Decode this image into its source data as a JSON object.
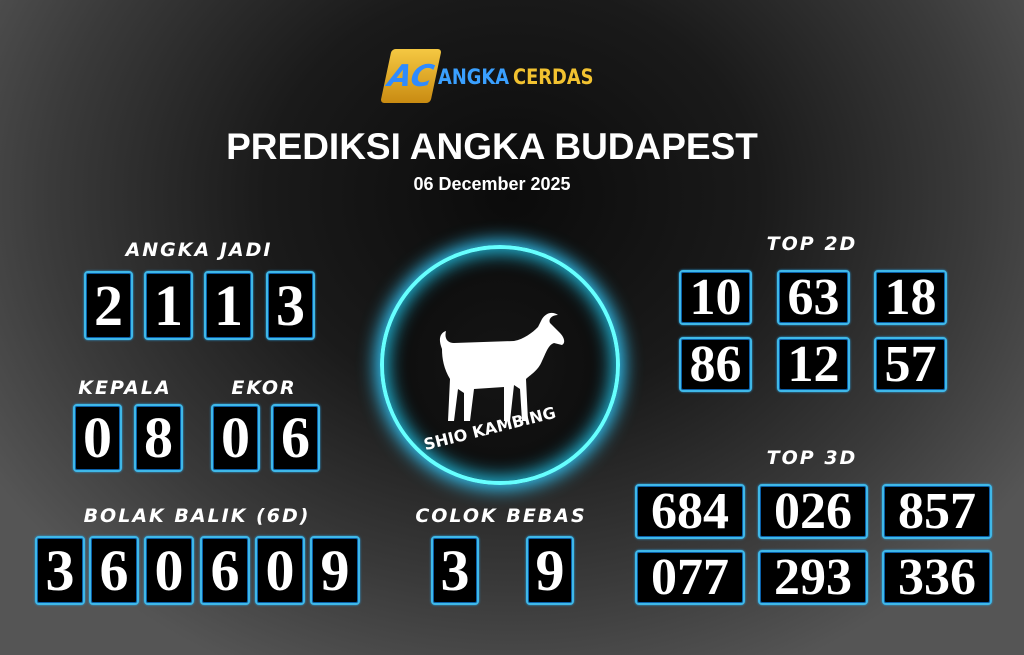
{
  "logo": {
    "text_a": "ANGKA",
    "text_b": "CERDAS",
    "letters": "AC"
  },
  "title": "PREDIKSI ANGKA BUDAPEST",
  "date": "06 December 2025",
  "angka_jadi": {
    "label": "ANGKA JADI",
    "digits": [
      "2",
      "1",
      "1",
      "3"
    ]
  },
  "kepala": {
    "label": "KEPALA",
    "digits": [
      "0",
      "8"
    ]
  },
  "ekor": {
    "label": "EKOR",
    "digits": [
      "0",
      "6"
    ]
  },
  "bolak_balik": {
    "label": "BOLAK BALIK (6D)",
    "digits": [
      "3",
      "6",
      "0",
      "6",
      "0",
      "9"
    ]
  },
  "colok_bebas": {
    "label": "COLOK BEBAS",
    "digits": [
      "3",
      "9"
    ]
  },
  "shio": {
    "label": "SHIO KAMBING",
    "icon": "goat-icon"
  },
  "top2d": {
    "label": "TOP 2D",
    "values": [
      "10",
      "63",
      "18",
      "86",
      "12",
      "57"
    ]
  },
  "top3d": {
    "label": "TOP 3D",
    "values": [
      "684",
      "026",
      "857",
      "077",
      "293",
      "336"
    ]
  },
  "colors": {
    "box_border": "#3fb8e8",
    "circle_glow": "#66ffff",
    "logo_blue": "#3aa0ff",
    "logo_yellow": "#f2c230"
  }
}
